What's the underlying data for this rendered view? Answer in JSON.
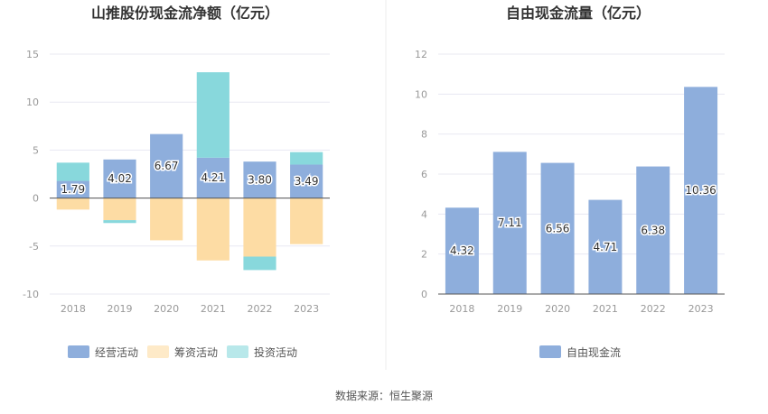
{
  "chart_data": [
    {
      "type": "bar",
      "stacked": true,
      "title": "山推股份现金流净额（亿元）",
      "categories": [
        "2018",
        "2019",
        "2020",
        "2021",
        "2022",
        "2023"
      ],
      "ylim": [
        -10,
        15
      ],
      "yticks": [
        -10,
        -5,
        0,
        5,
        10,
        15
      ],
      "legend_position": "bottom",
      "series": [
        {
          "name": "经营活动",
          "color": "#8eaedc",
          "values": [
            1.79,
            4.02,
            6.67,
            4.21,
            3.8,
            3.49
          ],
          "labels": [
            "1.79",
            "4.02",
            "6.67",
            "4.21",
            "3.80",
            "3.49"
          ]
        },
        {
          "name": "筹资活动",
          "color": "#fddca4",
          "values": [
            -1.2,
            -2.3,
            -4.4,
            -6.5,
            -6.1,
            -4.8
          ]
        },
        {
          "name": "投资活动",
          "color": "#88d8dc",
          "values": [
            1.9,
            -0.3,
            0,
            8.9,
            -1.4,
            1.3
          ]
        }
      ]
    },
    {
      "type": "bar",
      "title": "自由现金流量（亿元）",
      "categories": [
        "2018",
        "2019",
        "2020",
        "2021",
        "2022",
        "2023"
      ],
      "ylim": [
        0,
        12
      ],
      "yticks": [
        0,
        2,
        4,
        6,
        8,
        10,
        12
      ],
      "legend_position": "bottom",
      "series": [
        {
          "name": "自由现金流",
          "color": "#8eaedc",
          "values": [
            4.32,
            7.11,
            6.56,
            4.71,
            6.38,
            10.36
          ],
          "labels": [
            "4.32",
            "7.11",
            "6.56",
            "4.71",
            "6.38",
            "10.36"
          ]
        }
      ]
    }
  ],
  "footer": {
    "source": "数据来源：恒生聚源"
  },
  "colors": {
    "grid": "#e8e8f2",
    "axis": "#555555",
    "divider": "#eeeeee"
  }
}
